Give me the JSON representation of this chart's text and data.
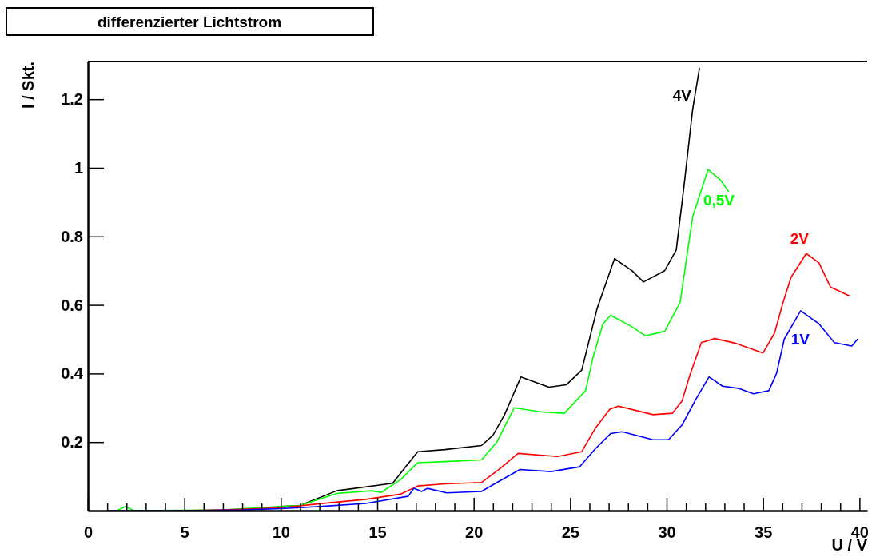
{
  "chart_data": {
    "type": "line",
    "title": "differenzierter Lichtstrom",
    "xlabel": "U / V",
    "ylabel": "I / Skt.",
    "xlim": [
      0,
      40.4
    ],
    "ylim": [
      0,
      1.31
    ],
    "xticks": [
      0,
      {
        "value": 1,
        "label": null
      },
      {
        "value": 2,
        "label": null
      },
      {
        "value": 3,
        "label": null
      },
      {
        "value": 4,
        "label": null
      },
      5,
      {
        "value": 6,
        "label": null
      },
      {
        "value": 7,
        "label": null
      },
      {
        "value": 8,
        "label": null
      },
      {
        "value": 9,
        "label": null
      },
      10,
      {
        "value": 11,
        "label": null
      },
      {
        "value": 12,
        "label": null
      },
      {
        "value": 13,
        "label": null
      },
      {
        "value": 14,
        "label": null
      },
      15,
      {
        "value": 16,
        "label": null
      },
      {
        "value": 17,
        "label": null
      },
      {
        "value": 18,
        "label": null
      },
      {
        "value": 19,
        "label": null
      },
      20,
      {
        "value": 21,
        "label": null
      },
      {
        "value": 22,
        "label": null
      },
      {
        "value": 23,
        "label": null
      },
      {
        "value": 24,
        "label": null
      },
      25,
      {
        "value": 26,
        "label": null
      },
      {
        "value": 27,
        "label": null
      },
      {
        "value": 28,
        "label": null
      },
      {
        "value": 29,
        "label": null
      },
      30,
      {
        "value": 31,
        "label": null
      },
      {
        "value": 32,
        "label": null
      },
      {
        "value": 33,
        "label": null
      },
      {
        "value": 34,
        "label": null
      },
      35,
      {
        "value": 36,
        "label": null
      },
      {
        "value": 37,
        "label": null
      },
      {
        "value": 38,
        "label": null
      },
      {
        "value": 39,
        "label": null
      },
      40
    ],
    "yticks": [
      0.2,
      0.4,
      0.6,
      0.8,
      1,
      1.2
    ],
    "grid": false,
    "legend": false,
    "marker": "none",
    "line_style": "solid",
    "series": [
      {
        "name": "4V",
        "color": "#000000",
        "x": [
          8,
          10,
          11,
          12.9,
          15.8,
          16.5,
          17.1,
          18.5,
          20.4,
          21.0,
          21.6,
          22.45,
          23.9,
          24.8,
          25.6,
          26.0,
          26.4,
          27.3,
          28.2,
          28.8,
          29.9,
          30.5,
          30.9,
          31.35,
          31.7
        ],
        "values": [
          0,
          0.012,
          0.015,
          0.058,
          0.08,
          0.13,
          0.172,
          0.178,
          0.19,
          0.22,
          0.28,
          0.39,
          0.36,
          0.367,
          0.41,
          0.5,
          0.59,
          0.735,
          0.7,
          0.667,
          0.7,
          0.76,
          0.946,
          1.17,
          1.29
        ]
      },
      {
        "name": "0,5V",
        "color": "#00ff00",
        "x": [
          1.5,
          1.95,
          2.4,
          7,
          10,
          11,
          12.9,
          14.7,
          15.2,
          16.2,
          17.1,
          18.5,
          20.4,
          21.2,
          22.1,
          23.5,
          24.7,
          25.8,
          26.2,
          26.7,
          27.1,
          28.1,
          28.9,
          29.9,
          30.7,
          31.35,
          32.15,
          32.8,
          33.2
        ],
        "values": [
          0,
          0.012,
          0,
          0.002,
          0.012,
          0.015,
          0.05,
          0.058,
          0.053,
          0.09,
          0.14,
          0.143,
          0.148,
          0.2,
          0.3,
          0.288,
          0.284,
          0.35,
          0.45,
          0.545,
          0.57,
          0.54,
          0.51,
          0.523,
          0.607,
          0.857,
          0.995,
          0.964,
          0.932
        ]
      },
      {
        "name": "2V",
        "color": "#ff0000",
        "x": [
          4.5,
          7,
          10,
          12,
          14.4,
          16.2,
          17.1,
          18.5,
          20.4,
          21.3,
          22.3,
          24.35,
          25.6,
          26.3,
          27.06,
          27.5,
          29.3,
          30.3,
          30.8,
          31.2,
          31.8,
          32.5,
          33.6,
          35.0,
          35.6,
          36.0,
          36.45,
          37.24,
          37.9,
          38.5,
          39.5
        ],
        "values": [
          0,
          0.002,
          0.008,
          0.02,
          0.033,
          0.048,
          0.072,
          0.078,
          0.082,
          0.12,
          0.167,
          0.158,
          0.172,
          0.24,
          0.296,
          0.305,
          0.28,
          0.284,
          0.32,
          0.394,
          0.49,
          0.502,
          0.488,
          0.46,
          0.518,
          0.6,
          0.68,
          0.75,
          0.723,
          0.652,
          0.626
        ]
      },
      {
        "name": "1V",
        "color": "#0000ff",
        "x": [
          1,
          5,
          8,
          10,
          12,
          14.4,
          16.6,
          16.9,
          17.3,
          17.6,
          18.6,
          20.4,
          21.3,
          22.4,
          24.0,
          25.5,
          26.3,
          27.1,
          27.7,
          29.3,
          30.1,
          30.8,
          31.5,
          32.2,
          32.9,
          33.7,
          34.5,
          35.3,
          35.7,
          36.1,
          36.95,
          37.9,
          38.7,
          39.6,
          39.9
        ],
        "values": [
          0,
          0,
          0.002,
          0.006,
          0.012,
          0.021,
          0.042,
          0.065,
          0.056,
          0.065,
          0.052,
          0.056,
          0.085,
          0.12,
          0.114,
          0.128,
          0.18,
          0.225,
          0.23,
          0.207,
          0.207,
          0.25,
          0.323,
          0.39,
          0.363,
          0.357,
          0.341,
          0.35,
          0.4,
          0.5,
          0.583,
          0.545,
          0.49,
          0.48,
          0.5
        ]
      }
    ]
  }
}
